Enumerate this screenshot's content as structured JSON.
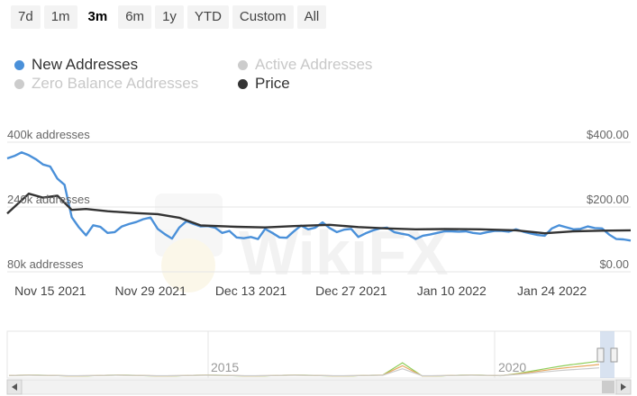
{
  "range_buttons": [
    {
      "label": "7d",
      "active": false
    },
    {
      "label": "1m",
      "active": false
    },
    {
      "label": "3m",
      "active": true
    },
    {
      "label": "6m",
      "active": false
    },
    {
      "label": "1y",
      "active": false
    },
    {
      "label": "YTD",
      "active": false
    },
    {
      "label": "Custom",
      "active": false
    },
    {
      "label": "All",
      "active": false
    }
  ],
  "legend": [
    {
      "label": "New Addresses",
      "color": "#4a90d9",
      "visible": true
    },
    {
      "label": "Active Addresses",
      "color": "#cccccc",
      "visible": false
    },
    {
      "label": "Zero Balance Addresses",
      "color": "#cccccc",
      "visible": false
    },
    {
      "label": "Price",
      "color": "#333333",
      "visible": true
    }
  ],
  "watermark": "WikiFX",
  "chart_data": {
    "type": "line",
    "x_start": "2021-11-11",
    "x_end": "2022-02-06",
    "x_ticks": [
      {
        "date": "2021-11-15",
        "label": "Nov 15 2021"
      },
      {
        "date": "2021-11-29",
        "label": "Nov 29 2021"
      },
      {
        "date": "2021-12-13",
        "label": "Dec 13 2021"
      },
      {
        "date": "2021-12-27",
        "label": "Dec 27 2021"
      },
      {
        "date": "2022-01-10",
        "label": "Jan 10 2022"
      },
      {
        "date": "2022-01-24",
        "label": "Jan 24 2022"
      }
    ],
    "left_axis": {
      "unit": "addresses",
      "range": [
        80000,
        400000
      ],
      "ticks": [
        {
          "value": 400000,
          "label": "400k addresses"
        },
        {
          "value": 240000,
          "label": "240k addresses"
        },
        {
          "value": 80000,
          "label": "80k addresses"
        }
      ]
    },
    "right_axis": {
      "unit": "USD",
      "range": [
        0,
        400
      ],
      "ticks": [
        {
          "value": 400,
          "label": "$400.00"
        },
        {
          "value": 200,
          "label": "$200.00"
        },
        {
          "value": 0,
          "label": "$0.00"
        }
      ]
    },
    "grid": true,
    "series": [
      {
        "name": "New Addresses",
        "axis": "left",
        "color": "#4a90d9",
        "x": [
          "2021-11-11",
          "2021-11-12",
          "2021-11-13",
          "2021-11-14",
          "2021-11-15",
          "2021-11-16",
          "2021-11-17",
          "2021-11-18",
          "2021-11-19",
          "2021-11-20",
          "2021-11-21",
          "2021-11-22",
          "2021-11-23",
          "2021-11-24",
          "2021-11-25",
          "2021-11-26",
          "2021-11-27",
          "2021-11-28",
          "2021-11-29",
          "2021-11-30",
          "2021-12-01",
          "2021-12-02",
          "2021-12-03",
          "2021-12-04",
          "2021-12-05",
          "2021-12-06",
          "2021-12-07",
          "2021-12-08",
          "2021-12-09",
          "2021-12-10",
          "2021-12-11",
          "2021-12-12",
          "2021-12-13",
          "2021-12-14",
          "2021-12-15",
          "2021-12-16",
          "2021-12-17",
          "2021-12-18",
          "2021-12-19",
          "2021-12-20",
          "2021-12-21",
          "2021-12-22",
          "2021-12-23",
          "2021-12-24",
          "2021-12-25",
          "2021-12-26",
          "2021-12-27",
          "2021-12-28",
          "2021-12-29",
          "2021-12-30",
          "2021-12-31",
          "2022-01-01",
          "2022-01-02",
          "2022-01-03",
          "2022-01-04",
          "2022-01-05",
          "2022-01-06",
          "2022-01-07",
          "2022-01-08",
          "2022-01-09",
          "2022-01-10",
          "2022-01-11",
          "2022-01-12",
          "2022-01-13",
          "2022-01-14",
          "2022-01-15",
          "2022-01-16",
          "2022-01-17",
          "2022-01-18",
          "2022-01-19",
          "2022-01-20",
          "2022-01-21",
          "2022-01-22",
          "2022-01-23",
          "2022-01-24",
          "2022-01-25",
          "2022-01-26",
          "2022-01-27",
          "2022-01-28",
          "2022-01-29",
          "2022-01-30",
          "2022-01-31",
          "2022-02-01",
          "2022-02-02",
          "2022-02-03",
          "2022-02-04",
          "2022-02-05",
          "2022-02-06"
        ],
        "values": [
          360000,
          366000,
          375000,
          368000,
          358000,
          345000,
          340000,
          310000,
          295000,
          215000,
          190000,
          170000,
          195000,
          191000,
          176000,
          178000,
          192000,
          198000,
          203000,
          210000,
          214000,
          186000,
          173000,
          162000,
          189000,
          205000,
          198000,
          192000,
          193000,
          189000,
          176000,
          181000,
          165000,
          163000,
          166000,
          161000,
          186000,
          176000,
          165000,
          164000,
          180000,
          194000,
          185000,
          189000,
          202000,
          188000,
          178000,
          184000,
          186000,
          166000,
          175000,
          182000,
          187000,
          189000,
          178000,
          174000,
          171000,
          161000,
          169000,
          172000,
          176000,
          180000,
          180000,
          179000,
          180000,
          176000,
          174000,
          178000,
          181000,
          181000,
          179000,
          185000,
          179000,
          175000,
          171000,
          169000,
          187000,
          195000,
          190000,
          185000,
          186000,
          192000,
          188000,
          187000,
          172000,
          161000,
          160000,
          157000
        ]
      },
      {
        "name": "Price",
        "axis": "right",
        "color": "#333333",
        "x": [
          "2021-11-11",
          "2021-11-14",
          "2021-11-16",
          "2021-11-18",
          "2021-11-20",
          "2021-11-22",
          "2021-11-25",
          "2021-11-29",
          "2021-12-02",
          "2021-12-05",
          "2021-12-08",
          "2021-12-13",
          "2021-12-17",
          "2021-12-21",
          "2021-12-26",
          "2021-12-30",
          "2022-01-03",
          "2022-01-07",
          "2022-01-11",
          "2022-01-16",
          "2022-01-21",
          "2022-01-25",
          "2022-01-29",
          "2022-02-02",
          "2022-02-06"
        ],
        "values": [
          180,
          241,
          229,
          235,
          191,
          194,
          187,
          181,
          178,
          167,
          143,
          139,
          137,
          141,
          145,
          138,
          134,
          131,
          132,
          131,
          128,
          119,
          125,
          127,
          128
        ]
      }
    ],
    "navigator": {
      "x_labels": [
        "2015",
        "2020"
      ],
      "series": [
        {
          "name": "Active Addresses",
          "color": "#8fce5a"
        },
        {
          "name": "Zero Balance Addresses",
          "color": "#e8a860"
        },
        {
          "name": "New Addresses",
          "color": "#c9c9c9"
        }
      ]
    }
  }
}
